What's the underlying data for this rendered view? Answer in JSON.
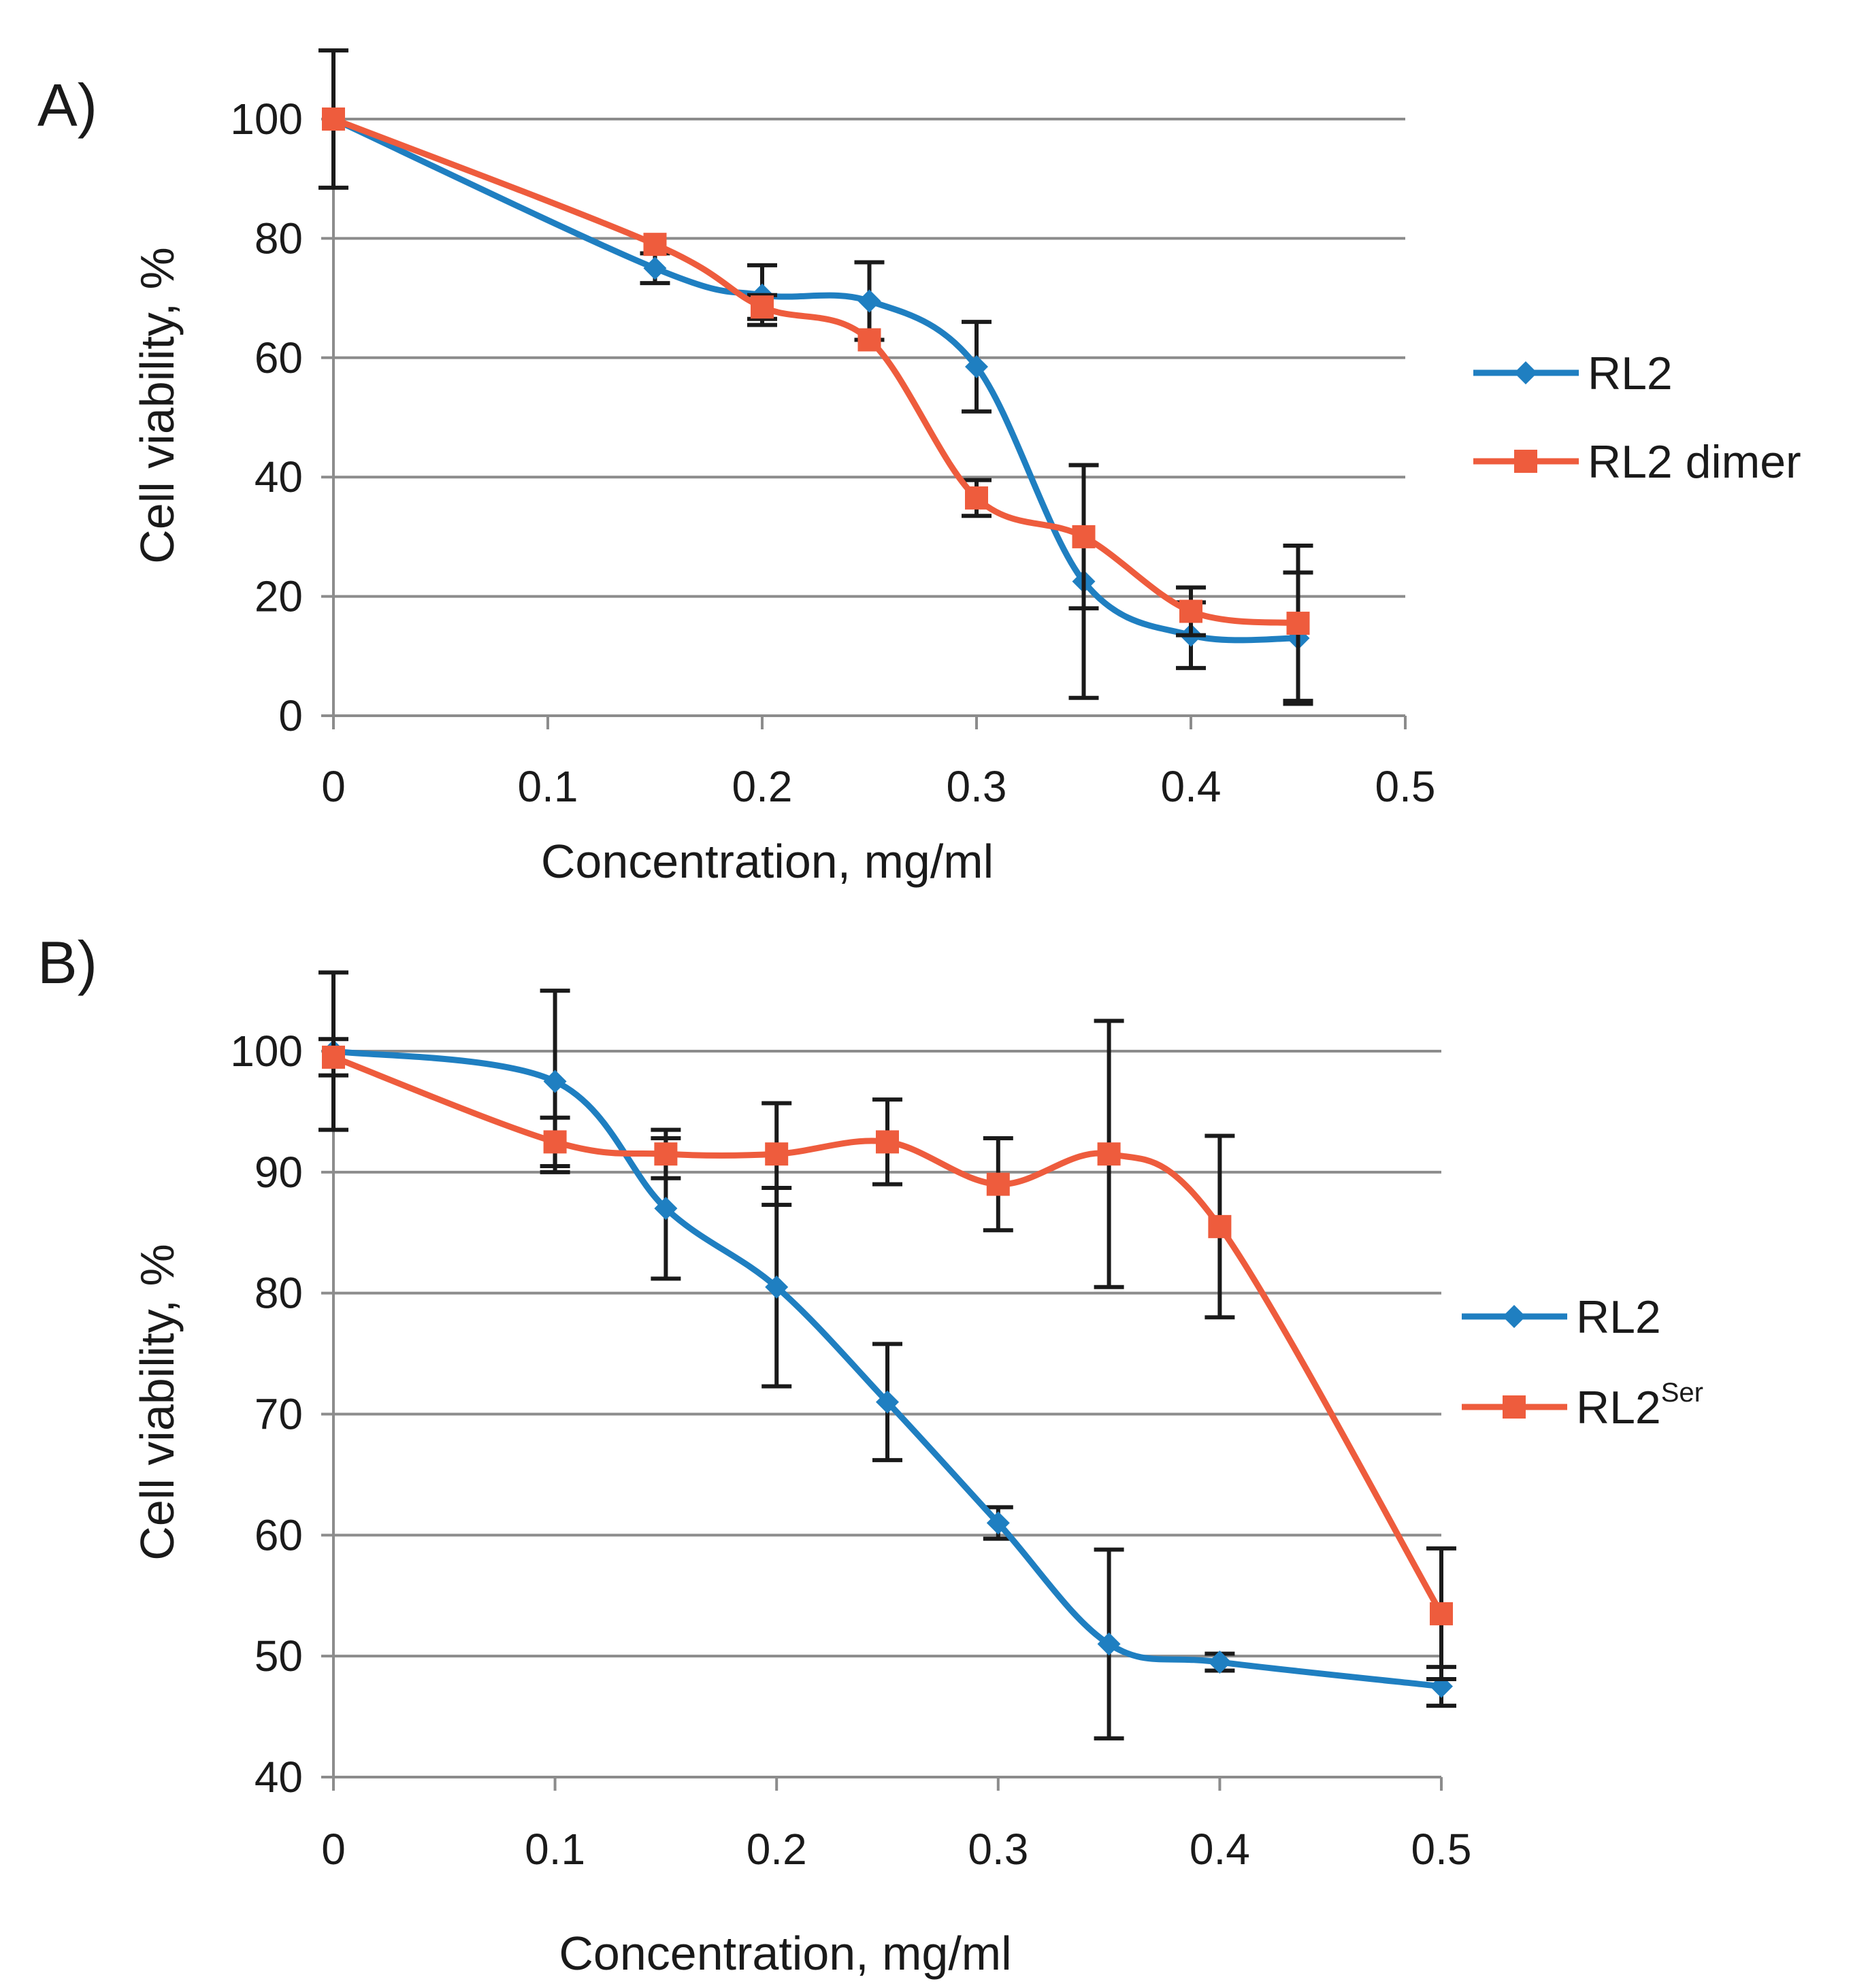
{
  "figure": {
    "description_labels": [
      "A)",
      "B)"
    ]
  },
  "chart_data": [
    {
      "panel_label": "A)",
      "type": "line",
      "xlabel": "Concentration, mg/ml",
      "ylabel": "Cell viability, %",
      "xlim": [
        0,
        0.5
      ],
      "ylim": [
        0,
        100
      ],
      "xticks": [
        0,
        0.1,
        0.2,
        0.3,
        0.4,
        0.5
      ],
      "xtick_labels": [
        "0",
        "0.1",
        "0.2",
        "0.3",
        "0.4",
        "0.5"
      ],
      "yticks": [
        0,
        20,
        40,
        60,
        80,
        100
      ],
      "ytick_labels": [
        "0",
        "20",
        "40",
        "60",
        "80",
        "100"
      ],
      "grid": true,
      "legend_position": "right",
      "series": [
        {
          "name": "RL2",
          "name_sup": "",
          "color": "#1f7fc1",
          "marker": "diamond",
          "x": [
            0,
            0.15,
            0.2,
            0.25,
            0.3,
            0.35,
            0.4,
            0.45
          ],
          "y": [
            100,
            75,
            70.5,
            69.5,
            58.5,
            22.5,
            13.5,
            13
          ],
          "err": [
            11.5,
            2.5,
            5,
            6.5,
            7.5,
            19.5,
            5.5,
            11
          ]
        },
        {
          "name": "RL2 dimer",
          "name_sup": "",
          "color": "#ee5c3d",
          "marker": "square",
          "x": [
            0,
            0.15,
            0.2,
            0.25,
            0.3,
            0.35,
            0.4,
            0.45
          ],
          "y": [
            100,
            79,
            68.5,
            63,
            36.5,
            30,
            17.5,
            15.5
          ],
          "err": [
            0,
            0,
            2,
            0,
            3,
            12,
            4,
            13
          ]
        }
      ]
    },
    {
      "panel_label": "B)",
      "type": "line",
      "xlabel": "Concentration, mg/ml",
      "ylabel": "Cell viability, %",
      "xlim": [
        0,
        0.5
      ],
      "ylim": [
        40,
        100
      ],
      "xticks": [
        0,
        0.1,
        0.2,
        0.3,
        0.4,
        0.5
      ],
      "xtick_labels": [
        "0",
        "0.1",
        "0.2",
        "0.3",
        "0.4",
        "0.5"
      ],
      "yticks": [
        40,
        50,
        60,
        70,
        80,
        90,
        100
      ],
      "ytick_labels": [
        "40",
        "50",
        "60",
        "70",
        "80",
        "90",
        "100"
      ],
      "grid": true,
      "legend_position": "right",
      "series": [
        {
          "name": "RL2",
          "name_sup": "",
          "color": "#1f7fc1",
          "marker": "diamond",
          "x": [
            0,
            0.1,
            0.15,
            0.2,
            0.25,
            0.3,
            0.35,
            0.4,
            0.5
          ],
          "y": [
            100,
            97.5,
            87,
            80.5,
            71,
            61,
            51,
            49.5,
            47.5
          ],
          "err": [
            6.5,
            7.5,
            5.8,
            8.2,
            4.8,
            1.3,
            7.8,
            0.7,
            1.6
          ]
        },
        {
          "name": "RL2",
          "name_sup": "Ser",
          "color": "#ee5c3d",
          "marker": "square",
          "x": [
            0,
            0.1,
            0.15,
            0.2,
            0.25,
            0.3,
            0.35,
            0.4,
            0.5
          ],
          "y": [
            99.5,
            92.5,
            91.5,
            91.5,
            92.5,
            89,
            91.5,
            85.5,
            53.5
          ],
          "err": [
            1.5,
            2,
            2,
            4.2,
            3.5,
            3.8,
            11,
            7.5,
            5.4
          ]
        }
      ]
    }
  ]
}
